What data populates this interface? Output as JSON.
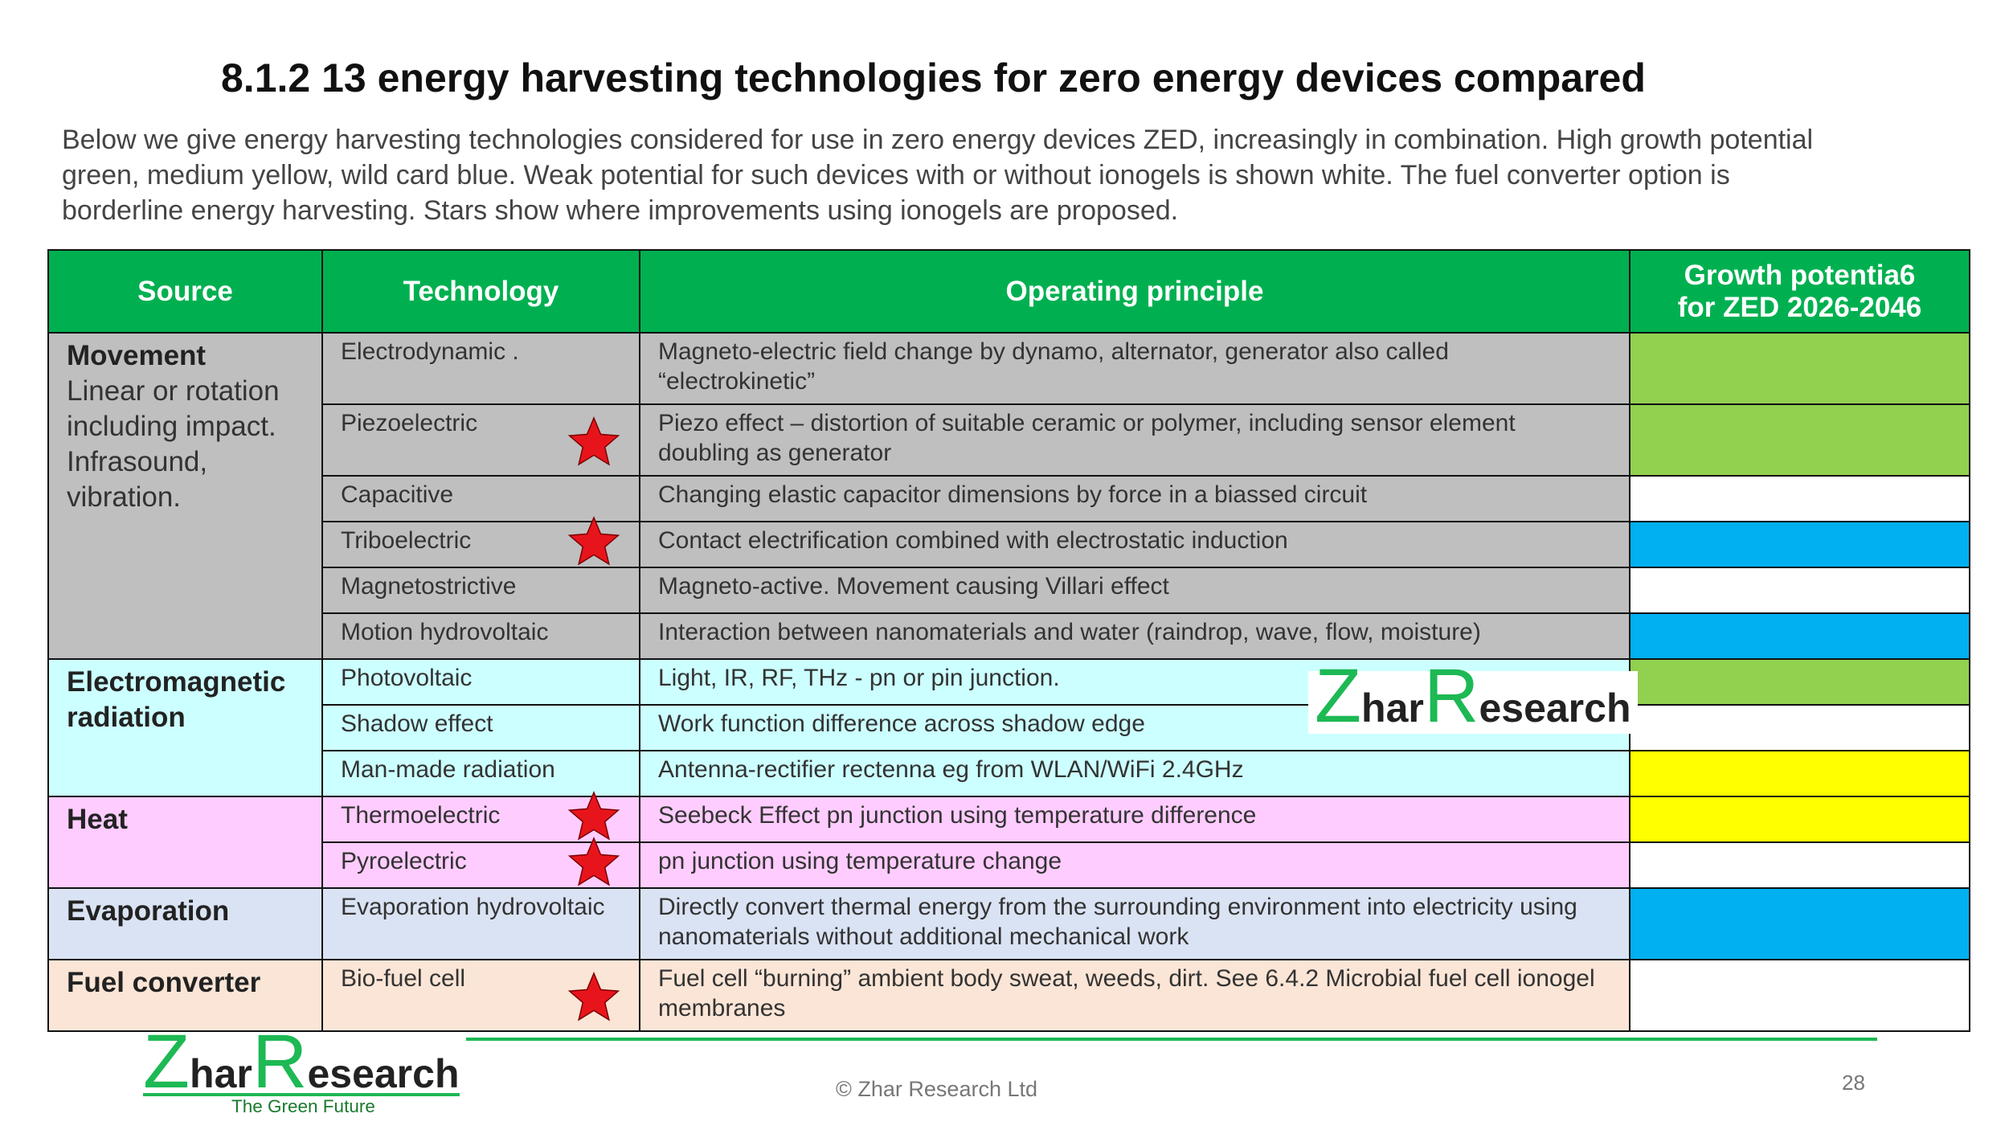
{
  "header": {
    "title": "8.1.2 13 energy harvesting technologies for zero energy devices compared",
    "subtitle_lines": [
      "Below we give energy harvesting technologies considered for use in zero energy devices ZED, increasingly in combination. High growth potential",
      "green, medium yellow, wild card blue. Weak potential for such devices with or without ionogels is shown white. The fuel converter option is",
      "borderline energy harvesting. Stars show where improvements using ionogels are proposed."
    ]
  },
  "table": {
    "headers": [
      "Source",
      "Technology",
      "Operating principle",
      [
        "Growth potentia6",
        "for ZED 2026-2046"
      ]
    ],
    "groups": [
      {
        "source": "Movement",
        "description": "Linear or rotation including impact. Infrasound, vibration.",
        "color": "#bfbfbf",
        "rows": [
          {
            "technology": "Electrodynamic .",
            "principle": "Magneto-electric field change by dynamo, alternator, generator also called “electrokinetic”",
            "potential_color": "#92d050",
            "star": false
          },
          {
            "technology": "Piezoelectric",
            "principle": "Piezo  effect – distortion of suitable ceramic or polymer, including sensor element doubling as generator",
            "potential_color": "#92d050",
            "star": true
          },
          {
            "technology": "Capacitive",
            "principle": "Changing elastic capacitor dimensions by force in a biassed circuit",
            "potential_color": "#ffffff",
            "star": false
          },
          {
            "technology": "Triboelectric",
            "principle": "Contact electrification combined with electrostatic induction",
            "potential_color": "#00b0f0",
            "star": true
          },
          {
            "technology": "Magnetostrictive",
            "principle": "Magneto-active. Movement causing Villari effect",
            "potential_color": "#ffffff",
            "star": false
          },
          {
            "technology": "Motion hydrovoltaic",
            "principle": "Interaction between nanomaterials and water (raindrop, wave, flow, moisture)",
            "potential_color": "#00b0f0",
            "star": false
          }
        ]
      },
      {
        "source": "Electromagnetic radiation",
        "description": "",
        "color": "#ccffff",
        "rows": [
          {
            "technology": "Photovoltaic",
            "principle": "Light, IR, RF, THz - pn or pin junction.",
            "potential_color": "#92d050",
            "star": false
          },
          {
            "technology": "Shadow effect",
            "principle": "Work function difference across shadow edge",
            "potential_color": "#ffffff",
            "star": false
          },
          {
            "technology": "Man-made radiation",
            "principle": "Antenna-rectifier rectenna eg from WLAN/WiFi 2.4GHz",
            "potential_color": "#ffff00",
            "star": false
          }
        ]
      },
      {
        "source": "Heat",
        "description": "",
        "color": "#ffccff",
        "rows": [
          {
            "technology": "Thermoelectric",
            "principle": "Seebeck Effect pn junction using temperature difference",
            "potential_color": "#ffff00",
            "star": true
          },
          {
            "technology": "Pyroelectric",
            "principle": "pn junction using temperature change",
            "potential_color": "#ffffff",
            "star": true
          }
        ]
      },
      {
        "source": "Evaporation",
        "description": "",
        "color": "#dae3f3",
        "rows": [
          {
            "technology": "Evaporation hydrovoltaic",
            "principle": "Directly convert thermal energy from the surrounding environment into electricity using nanomaterials without additional mechanical work",
            "potential_color": "#00b0f0",
            "star": false
          }
        ]
      },
      {
        "source": "Fuel converter",
        "description": "",
        "color": "#fbe5d6",
        "rows": [
          {
            "technology": "Bio-fuel cell",
            "principle": "Fuel cell “burning” ambient body sweat, weeds, dirt. See 6.4.2 Microbial fuel cell ionogel membranes",
            "potential_color": "#ffffff",
            "star": true
          }
        ]
      }
    ]
  },
  "logo": {
    "parts": [
      "Z",
      "har",
      "R",
      "esearch"
    ],
    "tagline": "The Green Future"
  },
  "footer": {
    "copyright": "© Zhar Research Ltd",
    "page": "28"
  }
}
